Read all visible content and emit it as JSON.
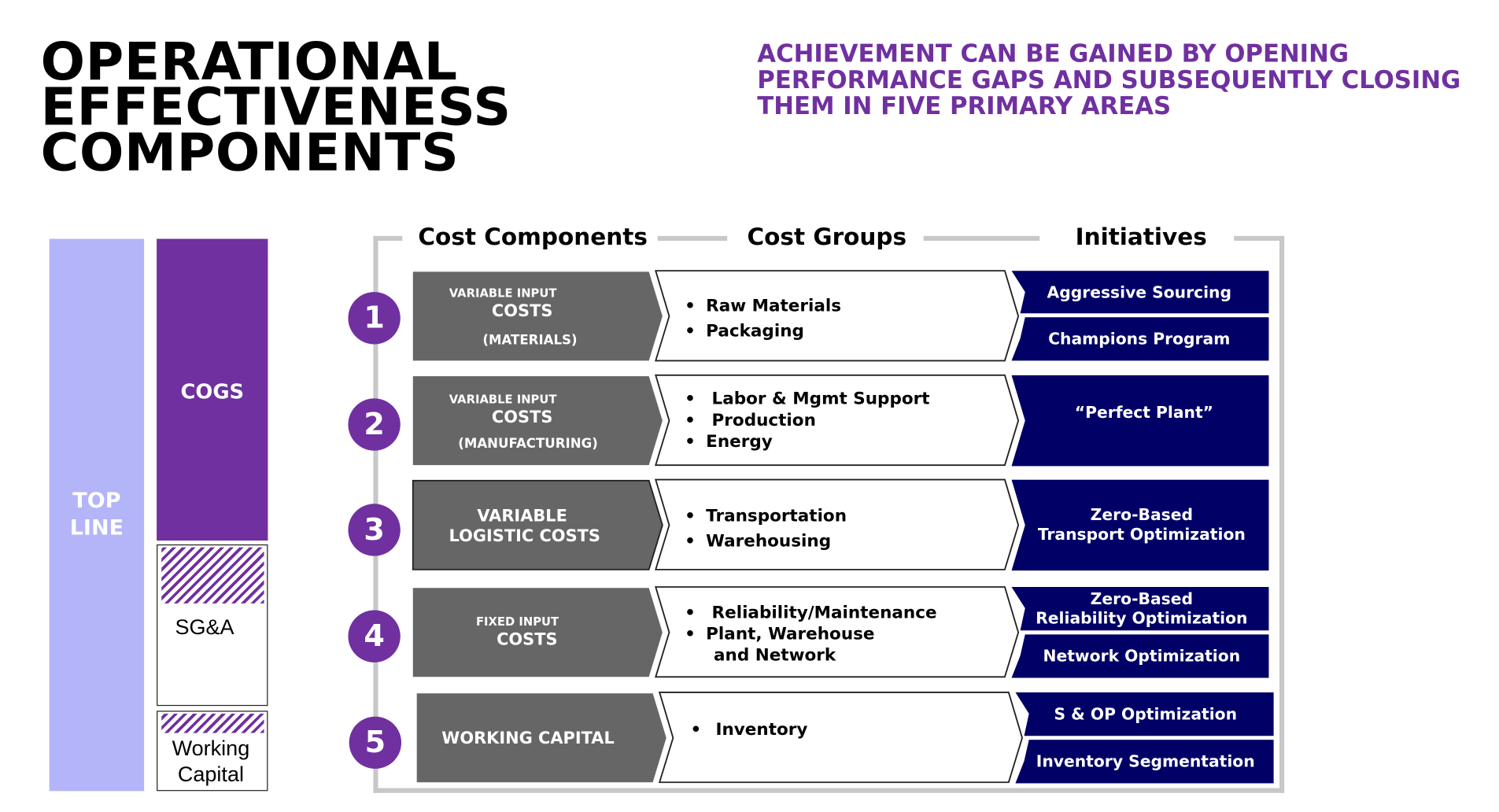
{
  "title": "OPERATIONAL\nEFFECTIVENESS\nCOMPONENTS",
  "subtitle": "ACHIEVEMENT CAN BE GAINED BY OPENING\nPERFORMANCE GAPS AND SUBSEQUENTLY CLOSING\nTHEM IN FIVE PRIMARY AREAS",
  "left_bar": {
    "top_line": "TOP\nLINE",
    "cogs": "COGS",
    "sga": "SG&A",
    "working_capital": "Working\nCapital"
  },
  "headers": {
    "cost_components": "Cost Components",
    "cost_groups": "Cost Groups",
    "initiatives": "Initiatives"
  },
  "rows": [
    {
      "number": "1",
      "component": [
        "VARIABLE INPUT",
        "COSTS",
        "(MATERIALS)"
      ],
      "groups": [
        "Raw Materials",
        "Packaging"
      ],
      "initiatives": [
        "Aggressive Sourcing",
        "Champions Program"
      ]
    },
    {
      "number": "2",
      "component": [
        "VARIABLE INPUT",
        "COSTS",
        "(MANUFACTURING)"
      ],
      "groups": [
        "Labor & Mgmt Support",
        "Production",
        "Energy"
      ],
      "initiatives": [
        "“Perfect Plant”"
      ]
    },
    {
      "number": "3",
      "component": [
        "VARIABLE",
        "LOGISTIC COSTS"
      ],
      "groups": [
        "Transportation",
        "Warehousing"
      ],
      "initiatives": [
        "Zero-Based\nTransport Optimization"
      ]
    },
    {
      "number": "4",
      "component": [
        "FIXED INPUT",
        "COSTS"
      ],
      "groups": [
        "Reliability/Maintenance",
        "Plant, Warehouse",
        "and Network"
      ],
      "initiatives": [
        "Zero-Based\nReliability Optimization",
        "Network Optimization"
      ]
    },
    {
      "number": "5",
      "component": [
        "WORKING CAPITAL"
      ],
      "groups": [
        "Inventory"
      ],
      "initiatives": [
        "S & OP Optimization",
        "Inventory Segmentation"
      ]
    }
  ],
  "colors": {
    "purple": "#7030a0",
    "lavender": "#b4b4f8",
    "gray_chevron": "#666666",
    "navy": "#000066",
    "frame": "#c8c8c8"
  }
}
